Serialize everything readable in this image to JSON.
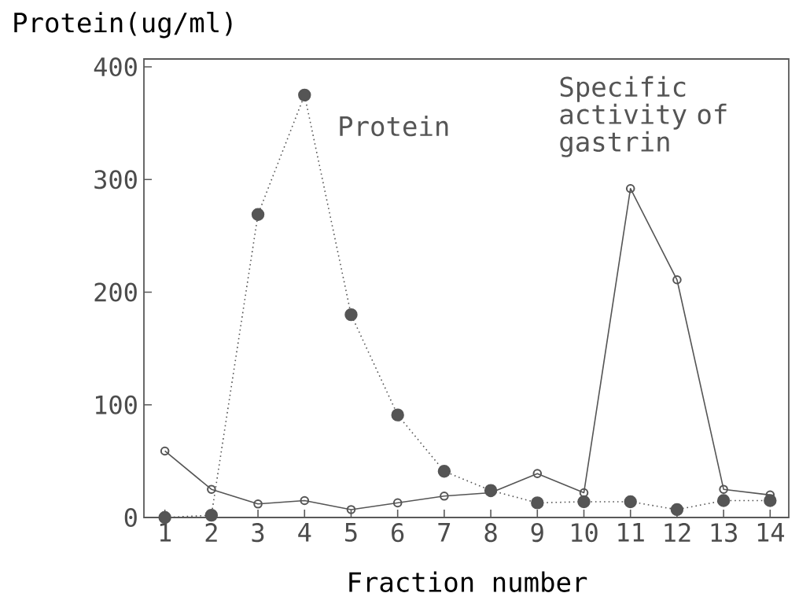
{
  "chart_data": {
    "type": "line",
    "ylabel": "Protein(ug/ml)",
    "xlabel": "Fraction number",
    "categories": [
      "1",
      "2",
      "3",
      "4",
      "5",
      "6",
      "7",
      "8",
      "9",
      "10",
      "11",
      "12",
      "13",
      "14"
    ],
    "series": [
      {
        "name": "Protein",
        "color": "#555555",
        "line_style": "dotted",
        "marker": "circle",
        "values": [
          0,
          2,
          269,
          375,
          180,
          91,
          41,
          24,
          13,
          14,
          14,
          7,
          15,
          15
        ]
      },
      {
        "name": "Specific activity of gastrin",
        "color": "#555555",
        "line_style": "solid",
        "marker": "circle",
        "values": [
          59,
          25,
          12,
          15,
          7,
          13,
          19,
          22,
          39,
          22,
          292,
          211,
          25,
          20
        ]
      }
    ],
    "ylim": [
      0,
      407
    ],
    "yticks": [
      0,
      100,
      200,
      300,
      400
    ],
    "legend": false
  }
}
